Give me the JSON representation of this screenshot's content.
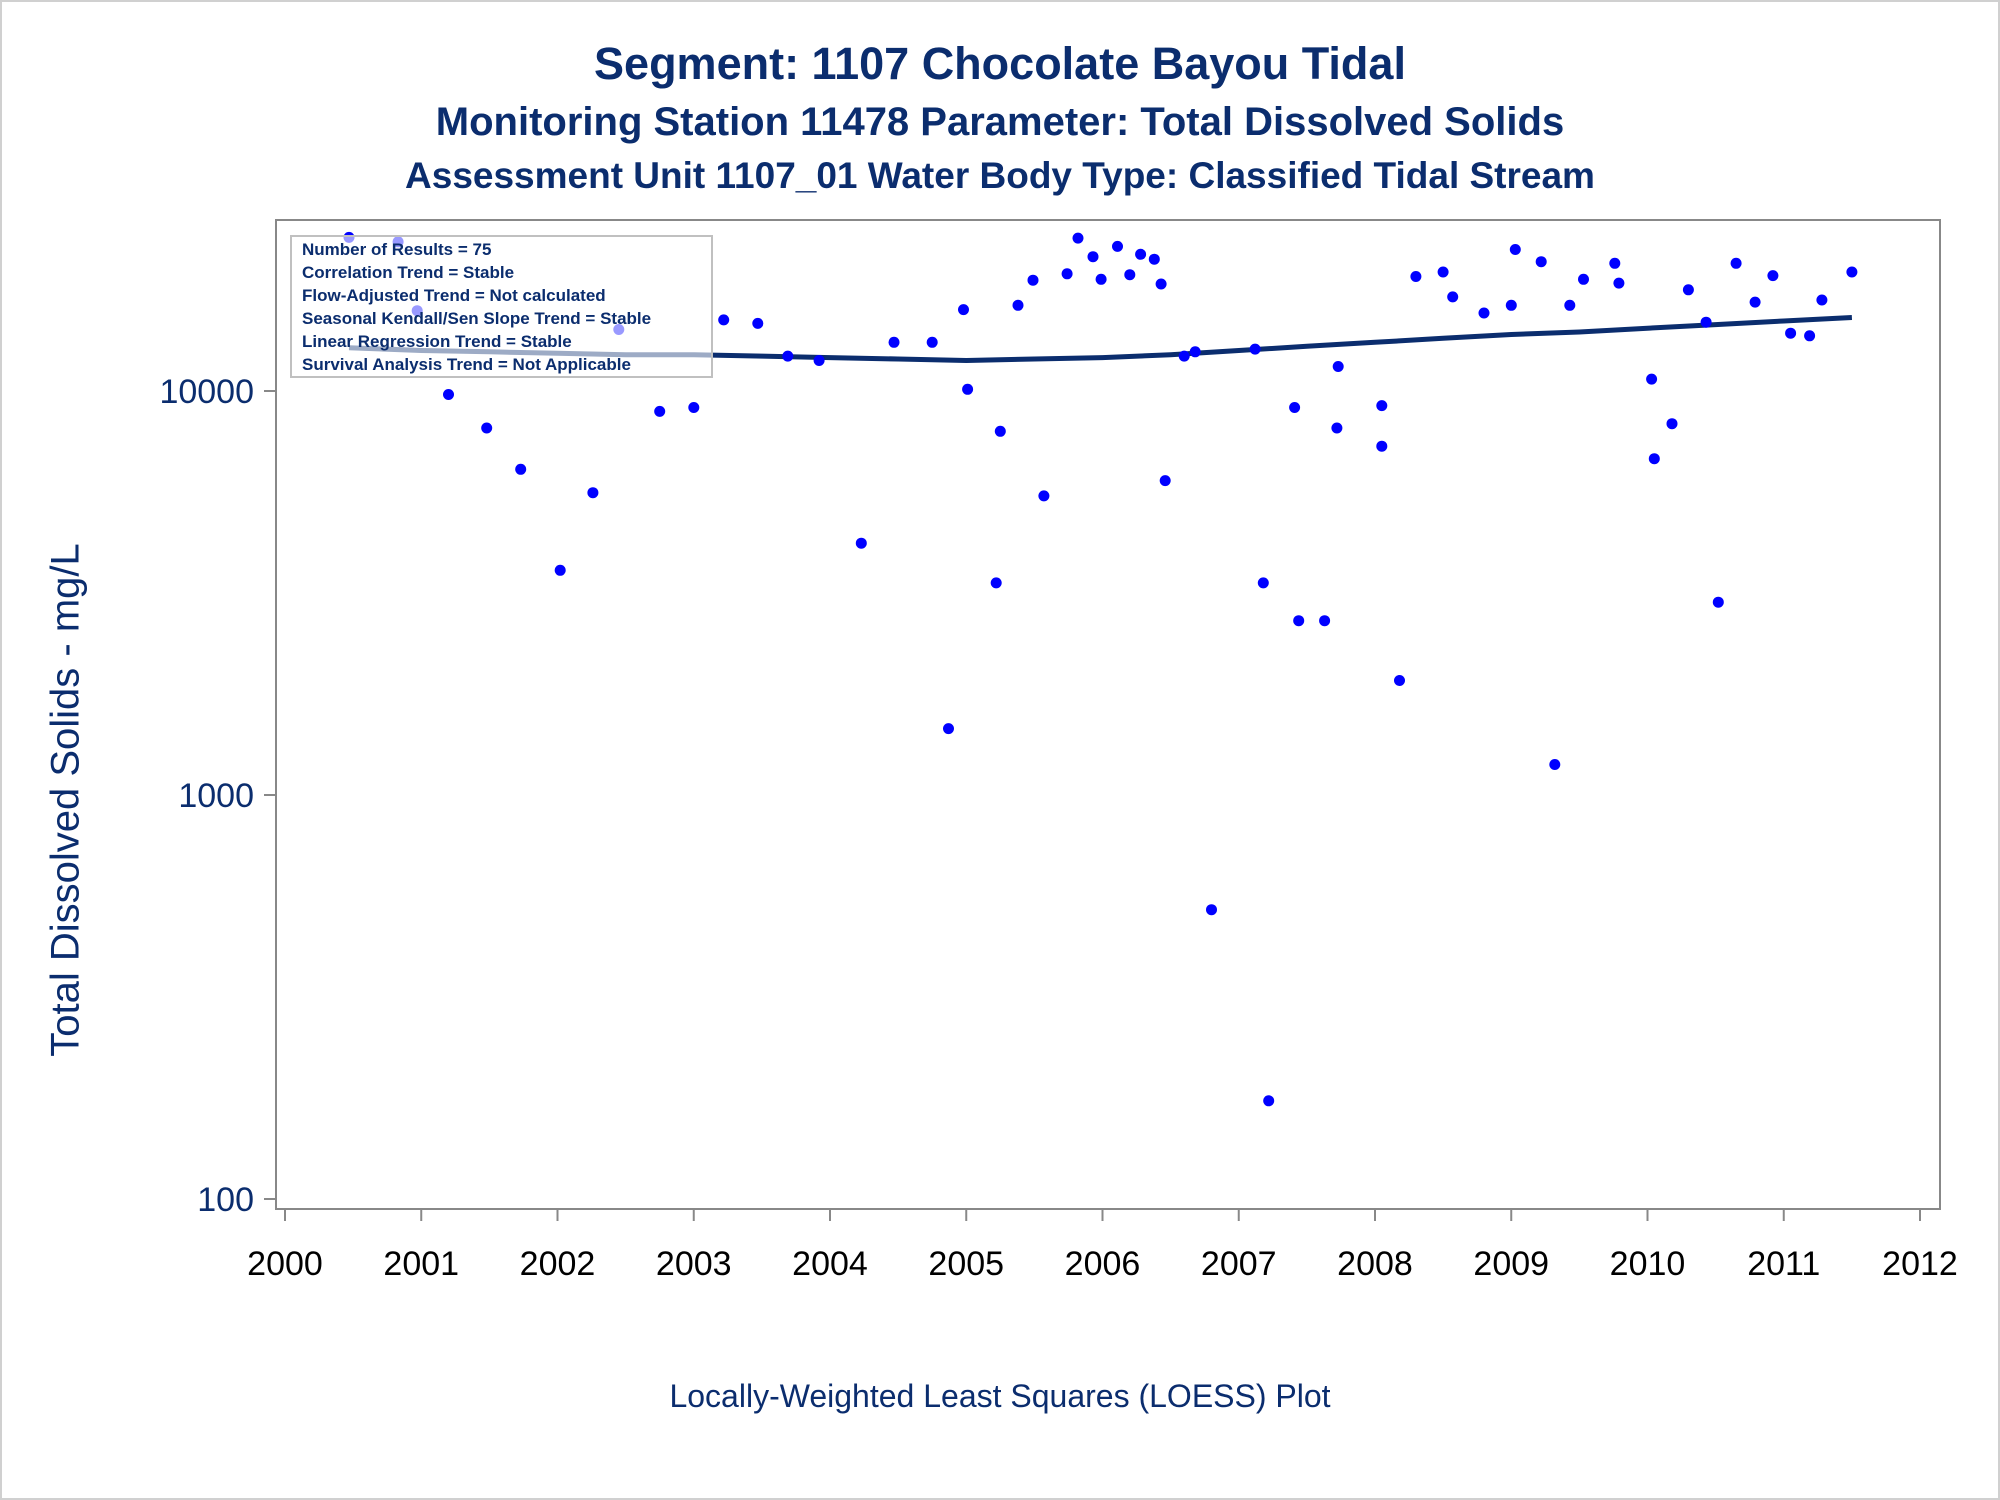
{
  "header": {
    "title": "Segment: 1107  Chocolate Bayou Tidal",
    "subtitle": "Monitoring Station 11478 Parameter: Total Dissolved Solids",
    "subtitle2": "Assessment Unit 1107_01   Water Body Type: Classified Tidal Stream"
  },
  "footer": {
    "note": "Locally-Weighted Least Squares (LOESS) Plot"
  },
  "colors": {
    "points": "#0000ff",
    "line": "#0b2d6e",
    "text": "#0b2d6e",
    "axis": "#888888"
  },
  "chart_data": {
    "type": "scatter",
    "ylabel": "Total Dissolved Solids - mg/L",
    "xlabel": "",
    "yscale": "log",
    "xlim": [
      2000,
      2012
    ],
    "ylim": [
      95,
      24500
    ],
    "x_ticks": [
      "2000",
      "2001",
      "2002",
      "2003",
      "2004",
      "2005",
      "2006",
      "2007",
      "2008",
      "2009",
      "2010",
      "2011",
      "2012"
    ],
    "y_ticks": [
      "100",
      "1000",
      "10000"
    ],
    "legend_placement": "top-left",
    "legend": [
      "Number of Results = 75",
      "Correlation Trend = Stable",
      "Flow-Adjusted Trend = Not calculated",
      "Seasonal Kendall/Sen Slope Trend = Stable",
      "Linear Regression Trend = Stable",
      "Survival Analysis Trend = Not Applicable"
    ],
    "series": [
      {
        "kind": "points",
        "x": [
          2000.47,
          2000.83,
          2000.97,
          2001.2,
          2001.48,
          2001.73,
          2002.02,
          2002.26,
          2002.45,
          2002.75,
          2003.0,
          2003.22,
          2003.47,
          2003.69,
          2003.92,
          2004.23,
          2004.47,
          2004.75,
          2004.87,
          2004.98,
          2005.01,
          2005.22,
          2005.25,
          2005.38,
          2005.49,
          2005.57,
          2005.74,
          2005.82,
          2005.93,
          2005.99,
          2006.11,
          2006.2,
          2006.28,
          2006.38,
          2006.43,
          2006.46,
          2006.6,
          2006.68,
          2006.8,
          2007.12,
          2007.18,
          2007.22,
          2007.41,
          2007.44,
          2007.63,
          2007.72,
          2007.73,
          2008.05,
          2008.05,
          2008.18,
          2008.3,
          2008.5,
          2008.57,
          2008.8,
          2009.0,
          2009.03,
          2009.22,
          2009.32,
          2009.43,
          2009.53,
          2009.76,
          2009.79,
          2010.03,
          2010.05,
          2010.18,
          2010.3,
          2010.43,
          2010.52,
          2010.65,
          2010.79,
          2010.92,
          2011.05,
          2011.19,
          2011.28,
          2011.5
        ],
        "y": [
          24000,
          23400,
          15800,
          9800,
          8100,
          6400,
          3600,
          5600,
          14200,
          8900,
          9100,
          15000,
          14700,
          12200,
          11900,
          4200,
          13200,
          13200,
          1460,
          15900,
          10100,
          3350,
          7950,
          16300,
          18800,
          5500,
          19500,
          23900,
          21500,
          18900,
          22800,
          19400,
          21800,
          21200,
          18400,
          6000,
          12200,
          12500,
          520,
          12700,
          3350,
          175,
          9100,
          2700,
          2700,
          8100,
          11500,
          9200,
          7300,
          1920,
          19200,
          19700,
          17100,
          15600,
          16300,
          22400,
          20900,
          1190,
          16300,
          18900,
          20700,
          18500,
          10700,
          6800,
          8300,
          17800,
          14800,
          3000,
          20700,
          16600,
          19300,
          13900,
          13700,
          16800,
          19700
        ]
      },
      {
        "kind": "loess",
        "x": [
          2000.47,
          2001.0,
          2001.5,
          2002.0,
          2002.5,
          2003.0,
          2003.5,
          2004.0,
          2004.5,
          2005.0,
          2005.5,
          2006.0,
          2006.5,
          2007.0,
          2007.5,
          2008.0,
          2008.5,
          2009.0,
          2009.5,
          2010.0,
          2010.5,
          2011.0,
          2011.5
        ],
        "y": [
          12800,
          12600,
          12500,
          12400,
          12300,
          12300,
          12200,
          12100,
          12000,
          11900,
          12000,
          12100,
          12300,
          12600,
          12900,
          13200,
          13500,
          13800,
          14000,
          14300,
          14600,
          14900,
          15200
        ]
      }
    ]
  }
}
